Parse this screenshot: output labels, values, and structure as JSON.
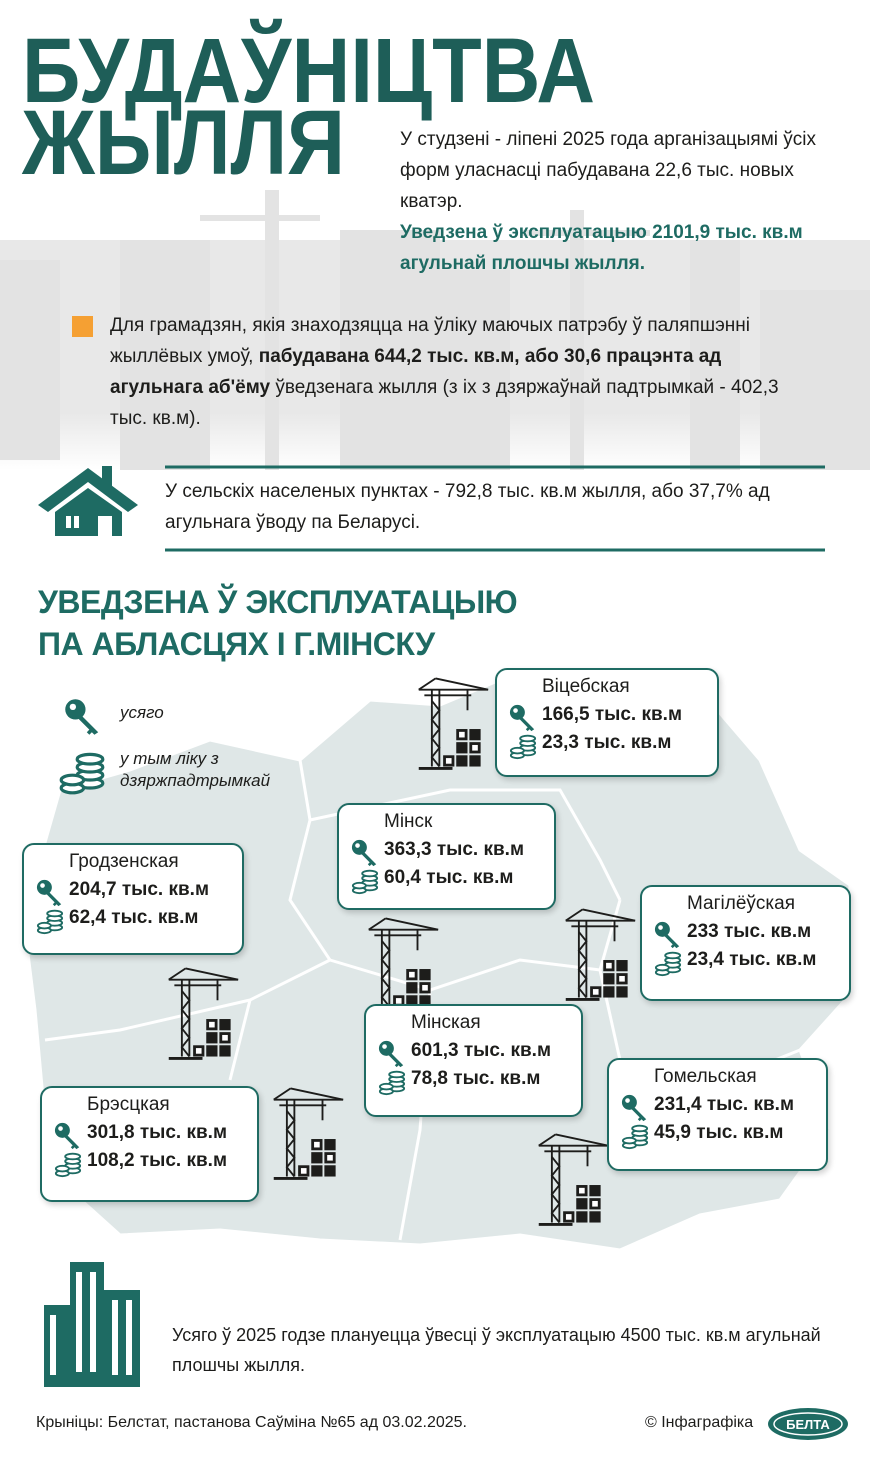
{
  "header": {
    "title": [
      "БУДАЎНІЦТВА",
      "ЖЫЛЛЯ"
    ],
    "intro": "У студзені - ліпені 2025 года арганізацыямі ўсіх форм уласнасці пабудавана 22,6 тыс. новых кватэр.",
    "intro_bold": "Уведзена ў эксплуатацыю 2101,9 тыс. кв.м агульнай плошчы жылля."
  },
  "citizens": {
    "text_start": "Для грамадзян, якія знаходзяцца на ўліку маючых патрэбу ў паляпшэнні жыллёвых умоў, ",
    "text_bold": "пабудавана 644,2 тыс. кв.м, або 30,6 працэнта ад агульнага аб'ёму",
    "text_end": " ўведзенага жылля (з іх з дзяржаўнай падтрымкай - 402,3 тыс. кв.м)."
  },
  "rural": {
    "text": "У сельскіх населеных пунктах - 792,8 тыс. кв.м жылля, або 37,7% ад агульнага ўводу па Беларусі."
  },
  "regions_section": {
    "title": [
      "УВЕДЗЕНА Ў ЭКСПЛУАТАЦЫЮ",
      "ПА АБЛАСЦЯХ І Г.МІНСКУ"
    ],
    "legend": {
      "total": "усяго",
      "support": [
        "у тым ліку з",
        "дзяржпадтрымкай"
      ]
    },
    "regions": [
      {
        "name": "Віцебская",
        "total": "166,5 тыс. кв.м",
        "support": "23,3 тыс. кв.м"
      },
      {
        "name": "Мінск",
        "total": "363,3 тыс. кв.м",
        "support": "60,4 тыс. кв.м"
      },
      {
        "name": "Гродзенская",
        "total": "204,7 тыс. кв.м",
        "support": "62,4 тыс. кв.м"
      },
      {
        "name": "Магілёўская",
        "total": "233 тыс. кв.м",
        "support": "23,4 тыс. кв.м"
      },
      {
        "name": "Мінская",
        "total": "601,3 тыс. кв.м",
        "support": "78,8 тыс. кв.м"
      },
      {
        "name": "Гомельская",
        "total": "231,4 тыс. кв.м",
        "support": "45,9 тыс. кв.м"
      },
      {
        "name": "Брэсцкая",
        "total": "301,8 тыс. кв.м",
        "support": "108,2 тыс. кв.м"
      }
    ]
  },
  "plan": {
    "text": "Усяго ў 2025 годзе плануецца ўвесці ў эксплуатацыю 4500 тыс. кв.м агульнай плошчы жылля."
  },
  "footer": {
    "sources": "Крыніцы: Белстат, пастанова Саўміна №65 ад 03.02.2025.",
    "credit": "© Інфаграфіка",
    "logo": "БЕЛТА"
  }
}
